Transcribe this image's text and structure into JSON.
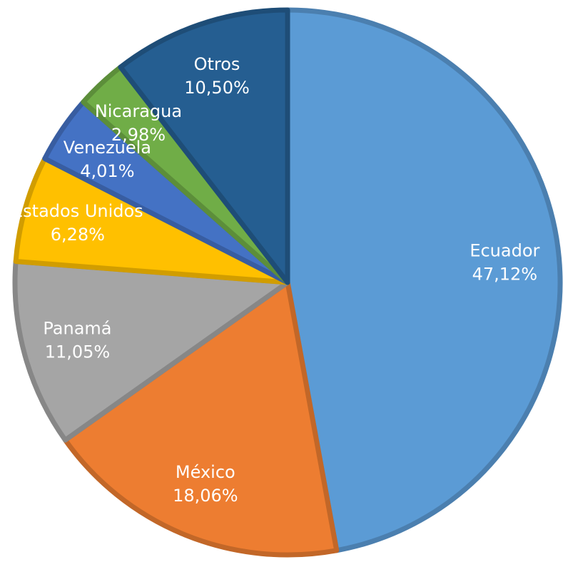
{
  "chart_data": {
    "type": "pie",
    "categories": [
      "Ecuador",
      "México",
      "Panamá",
      "Estados Unidos",
      "Venezuela",
      "Nicaragua",
      "Otros"
    ],
    "values": [
      47.12,
      18.06,
      11.05,
      6.28,
      4.01,
      2.98,
      10.5
    ],
    "value_labels": [
      "47,12%",
      "18,06%",
      "11,05%",
      "6,28%",
      "4,01%",
      "2,98%",
      "10,50%"
    ],
    "colors": [
      "#5b9bd5",
      "#ed7d31",
      "#a5a5a5",
      "#ffc000",
      "#4472c4",
      "#70ad47",
      "#255e91"
    ]
  }
}
